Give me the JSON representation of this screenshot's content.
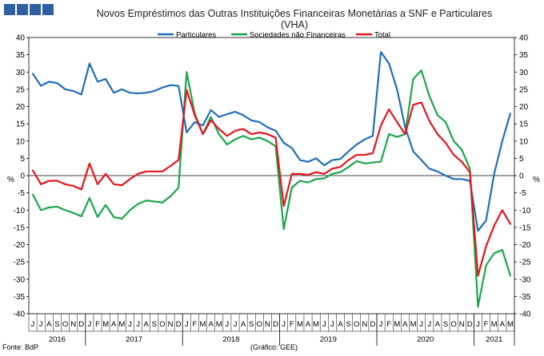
{
  "header": {
    "logo_icon": "bdp-blocks-logo",
    "logo_color": "#2e5fa3"
  },
  "chart_data": {
    "type": "line",
    "title": "Novos Empréstimos das Outras Instituições Financeiras Monetárias a SNF e Particulares",
    "subtitle": "(VHA)",
    "ylabel_left": "%",
    "ylabel_right": "%",
    "ylim": [
      -40,
      40
    ],
    "ytick_step": 5,
    "grid": false,
    "legend_position": "top-center",
    "month_labels": [
      "J",
      "J",
      "A",
      "S",
      "O",
      "N",
      "D",
      "J",
      "F",
      "M",
      "A",
      "M",
      "J",
      "J",
      "A",
      "S",
      "O",
      "N",
      "D",
      "J",
      "F",
      "M",
      "A",
      "M",
      "J",
      "J",
      "A",
      "S",
      "O",
      "N",
      "D",
      "J",
      "F",
      "M",
      "A",
      "M",
      "J",
      "J",
      "A",
      "S",
      "O",
      "N",
      "D",
      "J",
      "F",
      "M",
      "A",
      "M",
      "J",
      "J",
      "A",
      "S",
      "O",
      "N",
      "D",
      "J",
      "F",
      "M",
      "A",
      "M"
    ],
    "years": [
      {
        "label": "2016",
        "start": 0,
        "end": 7
      },
      {
        "label": "2017",
        "start": 7,
        "end": 19
      },
      {
        "label": "2018",
        "start": 19,
        "end": 31
      },
      {
        "label": "2019",
        "start": 31,
        "end": 43
      },
      {
        "label": "2020",
        "start": 43,
        "end": 55
      },
      {
        "label": "2021",
        "start": 55,
        "end": 60
      }
    ],
    "series": [
      {
        "name": "Particulares",
        "color": "#1f6eb8",
        "values": [
          29.5,
          26,
          27.2,
          26.8,
          25,
          24.5,
          23.5,
          32.5,
          27.2,
          28,
          24,
          25,
          24,
          23.8,
          24,
          24.5,
          25.5,
          26.2,
          26,
          12.5,
          15.5,
          14.5,
          19,
          17,
          17.8,
          18.5,
          17.5,
          16,
          15.5,
          14,
          13,
          9.5,
          8,
          4.5,
          4,
          5,
          3,
          4.5,
          4.8,
          7,
          9,
          10.5,
          11.5,
          35.8,
          32.5,
          25,
          14,
          7,
          4.5,
          2,
          1.2,
          0,
          -1,
          -1,
          -1.5,
          -16,
          -13,
          0.5,
          10,
          18
        ]
      },
      {
        "name": "Sociedades não Financeiras",
        "color": "#1aa64a",
        "values": [
          -5.5,
          -10,
          -9.2,
          -9,
          -10,
          -10.8,
          -11.8,
          -6.5,
          -12,
          -8.5,
          -12,
          -12.5,
          -10,
          -8.2,
          -7.2,
          -7.5,
          -7.8,
          -6,
          -3.5,
          30,
          18,
          12,
          17,
          12,
          9,
          10.5,
          11.5,
          10.5,
          11,
          10,
          8.5,
          -15.5,
          -3.5,
          -1.5,
          -2,
          -1,
          -0.8,
          0.5,
          1,
          2.5,
          4.2,
          3.5,
          3.8,
          4,
          12,
          11.2,
          12,
          28,
          30.5,
          23,
          17.5,
          15.5,
          10,
          7.5,
          2,
          -38,
          -26,
          -22.5,
          -21.5,
          -29
        ]
      },
      {
        "name": "Total",
        "color": "#e8141b",
        "values": [
          1.5,
          -2.5,
          -1.5,
          -1.5,
          -2.5,
          -3,
          -4,
          3.5,
          -2.5,
          0.5,
          -2.5,
          -2.8,
          -1,
          0.5,
          1.2,
          1.2,
          1.2,
          2.8,
          4.5,
          24.8,
          17.5,
          12,
          16,
          13.5,
          11.5,
          13,
          13.5,
          12,
          12.5,
          12,
          11,
          -8.8,
          0.5,
          0.5,
          0.2,
          1,
          0.5,
          2,
          2.5,
          4.5,
          6,
          6,
          6.5,
          14.5,
          19.2,
          15.5,
          12,
          20.5,
          21.2,
          15.8,
          12,
          9.5,
          6,
          4,
          1,
          -29,
          -20.5,
          -14.5,
          -10,
          -14
        ]
      }
    ]
  },
  "footer": {
    "source": "Fonte: BdP",
    "credit": "(Gráfico: GEE)"
  }
}
